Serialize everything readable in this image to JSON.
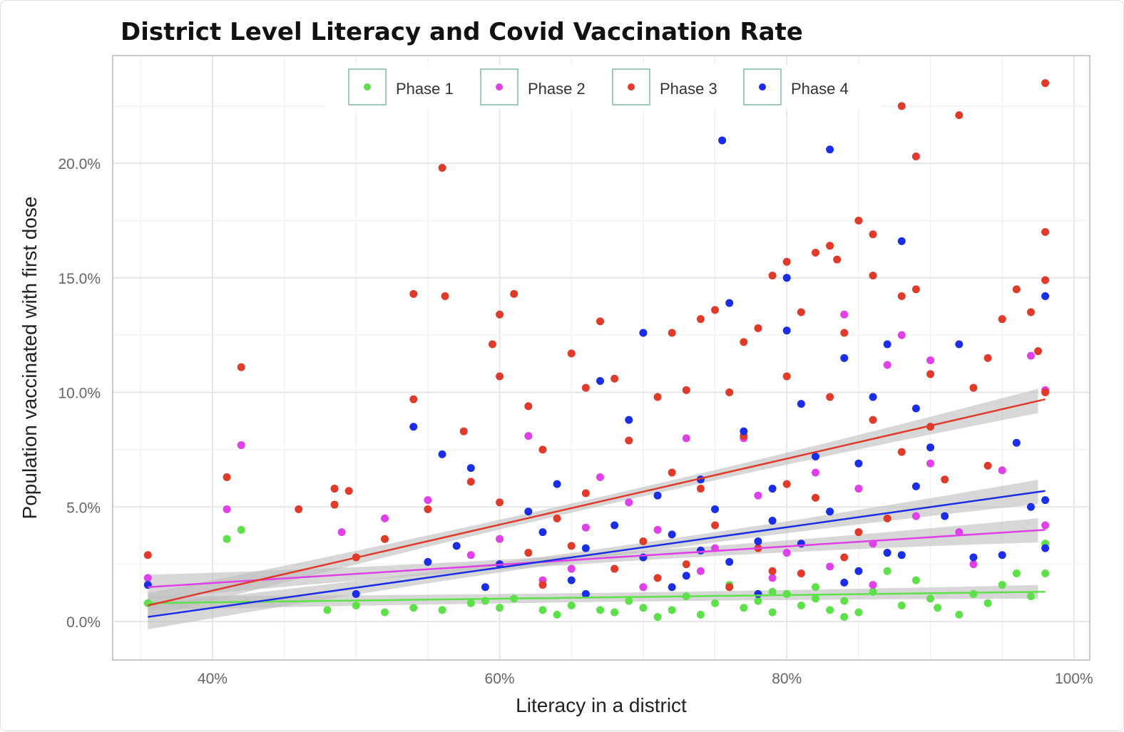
{
  "chart_data": {
    "type": "scatter",
    "title": "District Level Literacy and Covid Vaccination Rate",
    "xlabel": "Literacy in a district",
    "ylabel": "Population vaccinated with first dose",
    "xlim": [
      33.05,
      101.1
    ],
    "ylim": [
      -1.68,
      24.7
    ],
    "xticks": [
      40,
      60,
      80,
      100
    ],
    "xtick_labels": [
      "40%",
      "60%",
      "80%",
      "100%"
    ],
    "yticks": [
      0,
      5,
      10,
      15,
      20
    ],
    "ytick_labels": [
      "0.0%",
      "5.0%",
      "10.0%",
      "15.0%",
      "20.0%"
    ],
    "grid": true,
    "legend_position": "top-center",
    "series": [
      {
        "name": "Phase 1",
        "color": "#5ee04a",
        "fit": [
          [
            35.5,
            0.8
          ],
          [
            98,
            1.3
          ]
        ],
        "points": [
          [
            35.5,
            0.8
          ],
          [
            41,
            3.6
          ],
          [
            42,
            4.0
          ],
          [
            48,
            0.5
          ],
          [
            50,
            0.7
          ],
          [
            52,
            0.4
          ],
          [
            54,
            0.6
          ],
          [
            56,
            0.5
          ],
          [
            58,
            0.8
          ],
          [
            60,
            0.6
          ],
          [
            61,
            1.0
          ],
          [
            63,
            0.5
          ],
          [
            65,
            0.7
          ],
          [
            66,
            1.2
          ],
          [
            68,
            0.4
          ],
          [
            69,
            0.9
          ],
          [
            70,
            0.6
          ],
          [
            72,
            0.5
          ],
          [
            73,
            1.1
          ],
          [
            74,
            0.3
          ],
          [
            75,
            0.8
          ],
          [
            77,
            0.6
          ],
          [
            78,
            0.9
          ],
          [
            79,
            0.4
          ],
          [
            80,
            1.2
          ],
          [
            81,
            0.7
          ],
          [
            82,
            1.5
          ],
          [
            83,
            0.5
          ],
          [
            84,
            0.9
          ],
          [
            85,
            0.4
          ],
          [
            86,
            1.3
          ],
          [
            87,
            2.2
          ],
          [
            88,
            0.7
          ],
          [
            89,
            1.8
          ],
          [
            90,
            1.0
          ],
          [
            90.5,
            0.6
          ],
          [
            92,
            0.3
          ],
          [
            93,
            1.2
          ],
          [
            94,
            0.8
          ],
          [
            95,
            1.6
          ],
          [
            96,
            2.1
          ],
          [
            97,
            1.1
          ],
          [
            98,
            3.4
          ],
          [
            98,
            2.1
          ],
          [
            64,
            0.3
          ],
          [
            71,
            0.2
          ],
          [
            76,
            1.6
          ],
          [
            82,
            1.0
          ],
          [
            59,
            0.9
          ],
          [
            67,
            0.5
          ],
          [
            79,
            1.3
          ],
          [
            84,
            0.2
          ]
        ]
      },
      {
        "name": "Phase 2",
        "color": "#e040e8",
        "fit": [
          [
            35.5,
            1.5
          ],
          [
            98,
            4.0
          ]
        ],
        "points": [
          [
            35.5,
            1.9
          ],
          [
            41,
            4.9
          ],
          [
            42,
            7.7
          ],
          [
            49,
            3.9
          ],
          [
            52,
            4.5
          ],
          [
            55,
            5.3
          ],
          [
            58,
            2.9
          ],
          [
            60,
            3.6
          ],
          [
            62,
            8.1
          ],
          [
            65,
            2.3
          ],
          [
            67,
            6.3
          ],
          [
            69,
            5.2
          ],
          [
            71,
            4.0
          ],
          [
            73,
            8.0
          ],
          [
            75,
            3.2
          ],
          [
            77,
            8.0
          ],
          [
            78,
            5.5
          ],
          [
            80,
            3.0
          ],
          [
            82,
            6.5
          ],
          [
            84,
            13.4
          ],
          [
            85,
            5.8
          ],
          [
            86,
            3.4
          ],
          [
            87,
            11.2
          ],
          [
            88,
            12.5
          ],
          [
            89,
            4.6
          ],
          [
            90,
            11.4
          ],
          [
            90,
            6.9
          ],
          [
            93,
            2.5
          ],
          [
            95,
            6.6
          ],
          [
            97,
            11.6
          ],
          [
            98,
            10.1
          ],
          [
            98,
            4.2
          ],
          [
            63,
            1.8
          ],
          [
            66,
            4.1
          ],
          [
            70,
            1.5
          ],
          [
            74,
            2.2
          ],
          [
            79,
            1.9
          ],
          [
            83,
            2.4
          ],
          [
            86,
            1.6
          ],
          [
            92,
            3.9
          ]
        ]
      },
      {
        "name": "Phase 3",
        "color": "#e03a2a",
        "fit": [
          [
            35.5,
            0.7
          ],
          [
            98,
            9.7
          ]
        ],
        "points": [
          [
            35.5,
            2.9
          ],
          [
            42,
            11.1
          ],
          [
            41,
            6.3
          ],
          [
            46,
            4.9
          ],
          [
            48.5,
            5.8
          ],
          [
            49.5,
            5.7
          ],
          [
            48.5,
            5.1
          ],
          [
            54,
            9.7
          ],
          [
            54,
            14.3
          ],
          [
            56,
            19.8
          ],
          [
            56.2,
            14.2
          ],
          [
            57.5,
            8.3
          ],
          [
            59.5,
            12.1
          ],
          [
            60,
            13.4
          ],
          [
            60,
            10.7
          ],
          [
            61,
            14.3
          ],
          [
            62,
            9.4
          ],
          [
            63,
            7.5
          ],
          [
            65,
            11.7
          ],
          [
            66,
            10.2
          ],
          [
            67,
            13.1
          ],
          [
            68,
            10.6
          ],
          [
            70,
            12.6
          ],
          [
            71,
            9.8
          ],
          [
            72,
            12.6
          ],
          [
            73,
            10.1
          ],
          [
            74,
            13.2
          ],
          [
            75,
            13.6
          ],
          [
            76,
            10.0
          ],
          [
            77,
            12.2
          ],
          [
            78,
            12.8
          ],
          [
            79,
            15.1
          ],
          [
            80,
            15.7
          ],
          [
            80,
            10.7
          ],
          [
            81,
            13.5
          ],
          [
            82,
            16.1
          ],
          [
            83,
            16.4
          ],
          [
            83.5,
            15.8
          ],
          [
            84,
            12.6
          ],
          [
            85,
            17.5
          ],
          [
            86,
            15.1
          ],
          [
            86,
            16.9
          ],
          [
            88,
            22.5
          ],
          [
            88,
            14.2
          ],
          [
            89,
            20.3
          ],
          [
            89,
            14.5
          ],
          [
            90,
            10.8
          ],
          [
            92,
            22.1
          ],
          [
            93,
            10.2
          ],
          [
            94,
            11.5
          ],
          [
            95,
            13.2
          ],
          [
            96,
            14.5
          ],
          [
            97,
            13.5
          ],
          [
            97.5,
            11.8
          ],
          [
            98,
            23.5
          ],
          [
            98,
            17.0
          ],
          [
            98,
            14.9
          ],
          [
            98,
            10.0
          ],
          [
            55,
            4.9
          ],
          [
            58,
            6.1
          ],
          [
            62,
            3.0
          ],
          [
            64,
            4.5
          ],
          [
            66,
            5.6
          ],
          [
            68,
            2.3
          ],
          [
            70,
            3.5
          ],
          [
            72,
            6.5
          ],
          [
            73,
            2.5
          ],
          [
            75,
            4.2
          ],
          [
            77,
            8.1
          ],
          [
            78,
            3.2
          ],
          [
            80,
            6.0
          ],
          [
            82,
            5.4
          ],
          [
            83,
            9.8
          ],
          [
            84,
            2.8
          ],
          [
            86,
            8.8
          ],
          [
            88,
            7.4
          ],
          [
            90,
            8.5
          ],
          [
            91,
            6.2
          ],
          [
            52,
            3.6
          ],
          [
            50,
            2.8
          ],
          [
            60,
            5.2
          ],
          [
            65,
            3.3
          ],
          [
            69,
            7.9
          ],
          [
            74,
            5.8
          ],
          [
            79,
            2.2
          ],
          [
            85,
            3.9
          ],
          [
            87,
            4.5
          ],
          [
            94,
            6.8
          ],
          [
            63,
            1.6
          ],
          [
            71,
            1.9
          ],
          [
            76,
            1.5
          ],
          [
            81,
            2.1
          ]
        ]
      },
      {
        "name": "Phase 4",
        "color": "#1a2ee8",
        "fit": [
          [
            35.5,
            0.2
          ],
          [
            98,
            5.7
          ]
        ],
        "points": [
          [
            35.5,
            1.6
          ],
          [
            54,
            8.5
          ],
          [
            56,
            7.3
          ],
          [
            58,
            6.7
          ],
          [
            62,
            4.8
          ],
          [
            64,
            6.0
          ],
          [
            66,
            3.2
          ],
          [
            67,
            10.5
          ],
          [
            69,
            8.8
          ],
          [
            70,
            12.6
          ],
          [
            71,
            5.5
          ],
          [
            72,
            3.8
          ],
          [
            73,
            2.0
          ],
          [
            74,
            6.2
          ],
          [
            75,
            4.9
          ],
          [
            75.5,
            21.0
          ],
          [
            76,
            13.9
          ],
          [
            77,
            8.3
          ],
          [
            78,
            3.5
          ],
          [
            79,
            5.8
          ],
          [
            80,
            15.0
          ],
          [
            80,
            12.7
          ],
          [
            81,
            9.5
          ],
          [
            82,
            7.2
          ],
          [
            83,
            20.6
          ],
          [
            84,
            11.5
          ],
          [
            85,
            6.9
          ],
          [
            86,
            9.8
          ],
          [
            87,
            12.1
          ],
          [
            88,
            16.6
          ],
          [
            89,
            5.9
          ],
          [
            89,
            9.3
          ],
          [
            90,
            7.6
          ],
          [
            92,
            12.1
          ],
          [
            93,
            2.8
          ],
          [
            95,
            2.9
          ],
          [
            96,
            7.8
          ],
          [
            97,
            5.0
          ],
          [
            98,
            14.2
          ],
          [
            98,
            5.3
          ],
          [
            98,
            3.2
          ],
          [
            60,
            2.5
          ],
          [
            63,
            3.9
          ],
          [
            65,
            1.8
          ],
          [
            68,
            4.2
          ],
          [
            70,
            2.8
          ],
          [
            72,
            1.5
          ],
          [
            76,
            2.6
          ],
          [
            78,
            1.2
          ],
          [
            81,
            3.4
          ],
          [
            83,
            4.8
          ],
          [
            85,
            2.2
          ],
          [
            87,
            3.0
          ],
          [
            50,
            1.2
          ],
          [
            55,
            2.6
          ],
          [
            57,
            3.3
          ],
          [
            59,
            1.5
          ],
          [
            66,
            1.2
          ],
          [
            74,
            3.1
          ],
          [
            79,
            4.4
          ],
          [
            84,
            1.7
          ],
          [
            88,
            2.9
          ],
          [
            91,
            4.6
          ]
        ]
      }
    ]
  }
}
